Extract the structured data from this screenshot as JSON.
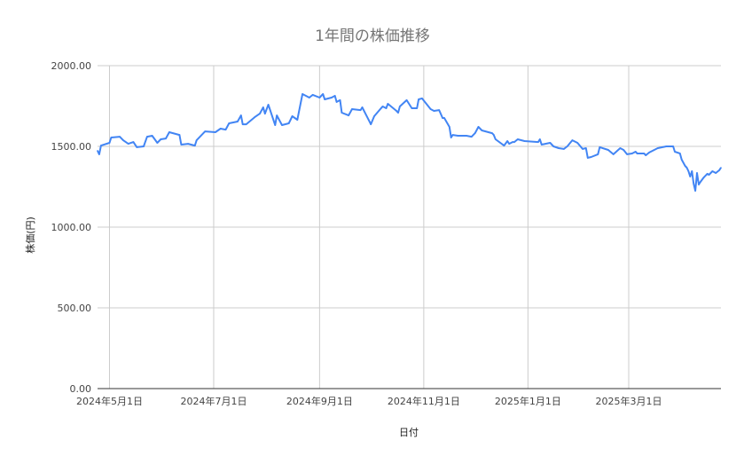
{
  "chart_data": {
    "type": "line",
    "title": "1年間の株価推移",
    "xlabel": "日付",
    "ylabel": "株価(円)",
    "ylim": [
      0,
      2000
    ],
    "xlim": [
      "2024-04-24",
      "2025-04-24"
    ],
    "y_ticks": [
      0,
      500,
      1000,
      1500,
      2000
    ],
    "y_tick_labels": [
      "0.00",
      "500.00",
      "1000.00",
      "1500.00",
      "2000.00"
    ],
    "x_ticks": [
      "2024-05-01",
      "2024-07-01",
      "2024-09-01",
      "2024-11-01",
      "2025-01-01",
      "2025-03-01"
    ],
    "x_tick_labels": [
      "2024年5月1日",
      "2024年7月1日",
      "2024年9月1日",
      "2024年11月1日",
      "2025年1月1日",
      "2025年3月1日"
    ],
    "grid": true,
    "legend": "none",
    "colors": {
      "line": "#4285f4",
      "grid": "#cccccc",
      "title": "#757575",
      "axis_text": "#444444"
    },
    "series": [
      {
        "x": [
          "2024-04-24",
          "2024-04-25",
          "2024-04-26",
          "2024-05-01",
          "2024-05-02",
          "2024-05-07",
          "2024-05-09",
          "2024-05-12",
          "2024-05-15",
          "2024-05-17",
          "2024-05-21",
          "2024-05-23",
          "2024-05-26",
          "2024-05-29",
          "2024-05-31",
          "2024-06-03",
          "2024-06-05",
          "2024-06-11",
          "2024-06-12",
          "2024-06-16",
          "2024-06-20",
          "2024-06-21",
          "2024-06-26",
          "2024-07-02",
          "2024-07-05",
          "2024-07-08",
          "2024-07-10",
          "2024-07-15",
          "2024-07-17",
          "2024-07-18",
          "2024-07-20",
          "2024-07-25",
          "2024-07-28",
          "2024-07-30",
          "2024-07-31",
          "2024-08-02",
          "2024-08-06",
          "2024-08-07",
          "2024-08-10",
          "2024-08-14",
          "2024-08-16",
          "2024-08-19",
          "2024-08-22",
          "2024-08-26",
          "2024-08-28",
          "2024-09-01",
          "2024-09-03",
          "2024-09-04",
          "2024-09-08",
          "2024-09-10",
          "2024-09-11",
          "2024-09-13",
          "2024-09-14",
          "2024-09-18",
          "2024-09-20",
          "2024-09-25",
          "2024-09-26",
          "2024-09-30",
          "2024-10-01",
          "2024-10-03",
          "2024-10-07",
          "2024-10-08",
          "2024-10-10",
          "2024-10-11",
          "2024-10-16",
          "2024-10-17",
          "2024-10-18",
          "2024-10-22",
          "2024-10-25",
          "2024-10-28",
          "2024-10-29",
          "2024-10-31",
          "2024-11-05",
          "2024-11-07",
          "2024-11-10",
          "2024-11-12",
          "2024-11-13",
          "2024-11-16",
          "2024-11-17",
          "2024-11-18",
          "2024-11-21",
          "2024-11-26",
          "2024-11-29",
          "2024-12-01",
          "2024-12-03",
          "2024-12-05",
          "2024-12-11",
          "2024-12-12",
          "2024-12-13",
          "2024-12-18",
          "2024-12-20",
          "2024-12-21",
          "2024-12-23",
          "2024-12-24",
          "2024-12-26",
          "2024-12-30",
          "2025-01-07",
          "2025-01-08",
          "2025-01-09",
          "2025-01-14",
          "2025-01-16",
          "2025-01-19",
          "2025-01-22",
          "2025-01-24",
          "2025-01-27",
          "2025-01-30",
          "2025-02-02",
          "2025-02-04",
          "2025-02-05",
          "2025-02-07",
          "2025-02-11",
          "2025-02-12",
          "2025-02-17",
          "2025-02-20",
          "2025-02-24",
          "2025-02-26",
          "2025-02-28",
          "2025-03-03",
          "2025-03-05",
          "2025-03-06",
          "2025-03-10",
          "2025-03-11",
          "2025-03-13",
          "2025-03-18",
          "2025-03-23",
          "2025-03-26",
          "2025-03-27",
          "2025-03-28",
          "2025-03-31",
          "2025-04-01",
          "2025-04-03",
          "2025-04-04",
          "2025-04-05",
          "2025-04-06",
          "2025-04-07",
          "2025-04-08",
          "2025-04-09",
          "2025-04-10",
          "2025-04-11",
          "2025-04-12",
          "2025-04-14",
          "2025-04-16",
          "2025-04-17",
          "2025-04-19",
          "2025-04-21",
          "2025-04-23",
          "2025-04-24"
        ],
        "y": [
          1473,
          1451,
          1505,
          1522,
          1555,
          1560,
          1538,
          1516,
          1527,
          1495,
          1500,
          1560,
          1566,
          1522,
          1544,
          1549,
          1588,
          1571,
          1511,
          1516,
          1505,
          1538,
          1593,
          1588,
          1610,
          1604,
          1643,
          1654,
          1692,
          1637,
          1637,
          1681,
          1703,
          1742,
          1703,
          1758,
          1632,
          1692,
          1632,
          1643,
          1687,
          1665,
          1824,
          1802,
          1819,
          1802,
          1824,
          1791,
          1802,
          1813,
          1775,
          1786,
          1709,
          1692,
          1731,
          1725,
          1742,
          1659,
          1637,
          1687,
          1736,
          1747,
          1736,
          1764,
          1720,
          1709,
          1747,
          1786,
          1736,
          1736,
          1791,
          1797,
          1731,
          1720,
          1725,
          1676,
          1676,
          1621,
          1555,
          1571,
          1566,
          1566,
          1560,
          1582,
          1621,
          1599,
          1582,
          1571,
          1544,
          1505,
          1533,
          1516,
          1527,
          1527,
          1544,
          1533,
          1527,
          1544,
          1511,
          1522,
          1500,
          1489,
          1484,
          1500,
          1538,
          1522,
          1484,
          1489,
          1429,
          1434,
          1451,
          1495,
          1478,
          1451,
          1489,
          1478,
          1451,
          1456,
          1467,
          1456,
          1456,
          1445,
          1462,
          1489,
          1500,
          1500,
          1500,
          1467,
          1456,
          1418,
          1379,
          1368,
          1346,
          1313,
          1346,
          1269,
          1225,
          1335,
          1264,
          1280,
          1308,
          1330,
          1324,
          1346,
          1335,
          1352,
          1368
        ]
      }
    ]
  }
}
